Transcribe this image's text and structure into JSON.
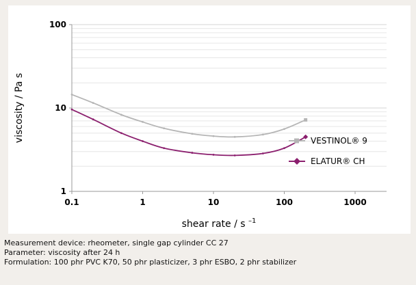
{
  "chart_data": {
    "type": "line",
    "xscale": "log",
    "yscale": "log",
    "xlim": [
      0.1,
      1000
    ],
    "ylim": [
      1,
      100
    ],
    "xticks": [
      0.1,
      1,
      10,
      100,
      1000
    ],
    "xtick_labels": [
      "0.1",
      "1",
      "10",
      "100",
      "1000"
    ],
    "yticks": [
      1,
      10,
      100
    ],
    "ytick_labels": [
      "1",
      "10",
      "100"
    ],
    "xlabel_main": "shear rate / s",
    "xlabel_sup": "–1",
    "ylabel": "viscosity / Pa s",
    "grid": "horizontal",
    "legend_position": "right",
    "series": [
      {
        "name": "VESTINOL® 9",
        "color": "#b5b5b5",
        "marker": "square",
        "x": [
          0.1,
          0.2,
          0.5,
          1,
          2,
          5,
          10,
          20,
          50,
          100,
          200
        ],
        "y": [
          14.5,
          11.5,
          8.3,
          6.8,
          5.7,
          4.9,
          4.6,
          4.5,
          4.8,
          5.6,
          7.2
        ]
      },
      {
        "name": "ELATUR® CH",
        "color": "#8b1f6e",
        "marker": "diamond",
        "x": [
          0.1,
          0.2,
          0.5,
          1,
          2,
          5,
          10,
          20,
          50,
          100,
          200
        ],
        "y": [
          9.6,
          7.3,
          5.0,
          4.0,
          3.3,
          2.9,
          2.75,
          2.7,
          2.85,
          3.3,
          4.5
        ]
      }
    ]
  },
  "notes": [
    "Measurement device: rheometer, single gap cylinder CC 27",
    "Parameter: viscosity after 24 h",
    "Formulation: 100 phr PVC K70, 50 phr plasticizer, 3 phr ESBO, 2 phr stabilizer"
  ]
}
